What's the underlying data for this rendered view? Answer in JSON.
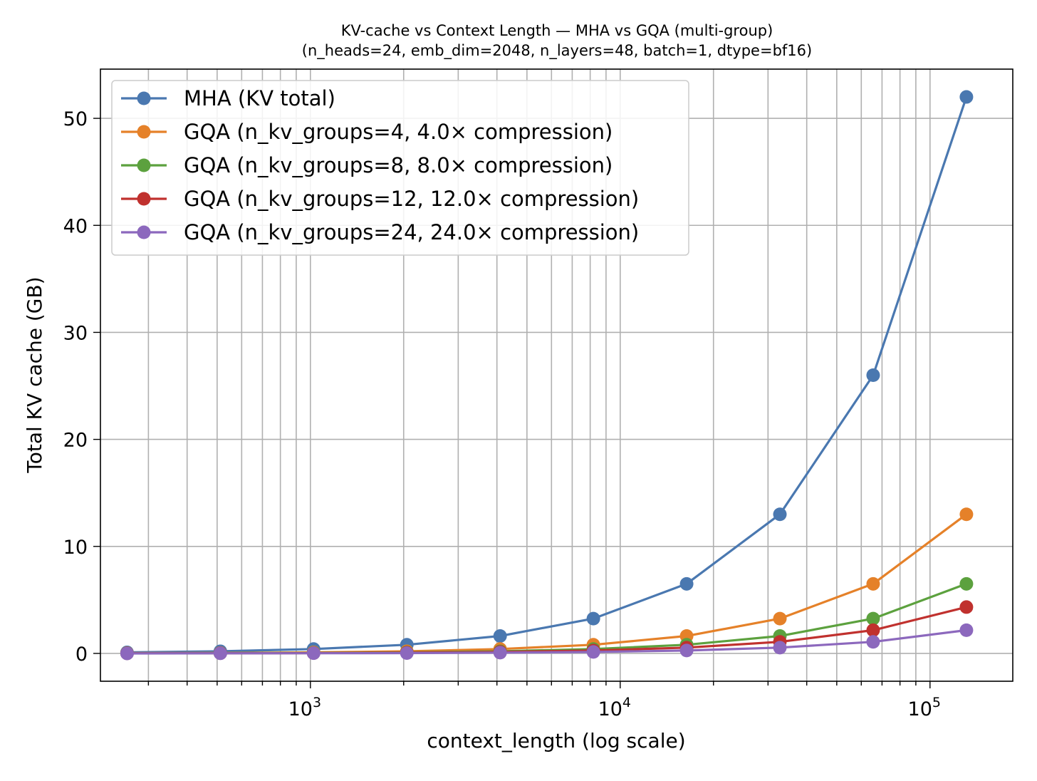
{
  "chart_data": {
    "type": "line",
    "title": "KV-cache vs Context Length — MHA vs GQA (multi-group)",
    "subtitle": "(n_heads=24, emb_dim=2048, n_layers=48, batch=1, dtype=bf16)",
    "xlabel": "context_length (log scale)",
    "ylabel": "Total KV cache (GB)",
    "xscale": "log",
    "xlim": [
      210,
      185000
    ],
    "ylim": [
      -2.6,
      54.6
    ],
    "grid": true,
    "legend_position": "upper-left",
    "x": [
      256,
      512,
      1024,
      2048,
      4096,
      8192,
      16384,
      32768,
      65536,
      131072
    ],
    "x_tick_labels": [
      {
        "value": 1000,
        "base": "10",
        "exp": "3"
      },
      {
        "value": 10000,
        "base": "10",
        "exp": "4"
      },
      {
        "value": 100000,
        "base": "10",
        "exp": "5"
      }
    ],
    "y_ticks": [
      0,
      10,
      20,
      30,
      40,
      50
    ],
    "y_tick_labels": [
      "0",
      "10",
      "20",
      "30",
      "40",
      "50"
    ],
    "series": [
      {
        "name": "MHA (KV total)",
        "color": "#4a78b0",
        "values": [
          0.1,
          0.2,
          0.41,
          0.81,
          1.63,
          3.25,
          6.5,
          13.0,
          26.0,
          52.0
        ]
      },
      {
        "name": "GQA (n_kv_groups=4, 4.0× compression)",
        "color": "#e58129",
        "values": [
          0.03,
          0.05,
          0.1,
          0.2,
          0.41,
          0.81,
          1.63,
          3.25,
          6.5,
          13.0
        ]
      },
      {
        "name": "GQA (n_kv_groups=8, 8.0× compression)",
        "color": "#5ca13e",
        "values": [
          0.01,
          0.03,
          0.05,
          0.1,
          0.2,
          0.41,
          0.81,
          1.63,
          3.25,
          6.5
        ]
      },
      {
        "name": "GQA (n_kv_groups=12, 12.0× compression)",
        "color": "#c0312e",
        "values": [
          0.01,
          0.02,
          0.03,
          0.07,
          0.14,
          0.27,
          0.54,
          1.08,
          2.17,
          4.33
        ]
      },
      {
        "name": "GQA (n_kv_groups=24, 24.0× compression)",
        "color": "#8c68bd",
        "values": [
          0.0,
          0.01,
          0.02,
          0.03,
          0.07,
          0.14,
          0.27,
          0.54,
          1.08,
          2.17
        ]
      }
    ]
  }
}
